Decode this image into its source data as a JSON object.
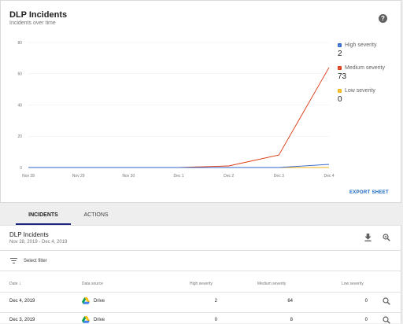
{
  "header": {
    "title": "DLP Incidents",
    "subtitle": "Incidents over time",
    "help_icon": "help-icon"
  },
  "chart_data": {
    "type": "line",
    "x": [
      "Nov 28",
      "Nov 29",
      "Nov 30",
      "Dec 1",
      "Dec 2",
      "Dec 3",
      "Dec 4"
    ],
    "y_ticks": [
      "80",
      "60",
      "40",
      "20",
      "0"
    ],
    "ylim": [
      0,
      80
    ],
    "grid": true,
    "legend_placement": "right",
    "series": [
      {
        "name": "High severity",
        "color": "#3366cc",
        "values": [
          0,
          0,
          0,
          0,
          0,
          0,
          2
        ]
      },
      {
        "name": "Medium severity",
        "color": "#dc3912",
        "values": [
          0,
          0,
          0,
          0,
          1,
          8,
          64
        ]
      },
      {
        "name": "Low severity",
        "color": "#f2b616",
        "values": [
          0,
          0,
          0,
          0,
          0,
          0,
          0
        ]
      }
    ]
  },
  "legend": [
    {
      "name": "High severity",
      "value": "2",
      "color": "#3366cc"
    },
    {
      "name": "Medium severity",
      "value": "73",
      "color": "#dc3912"
    },
    {
      "name": "Low severity",
      "value": "0",
      "color": "#f2b616"
    }
  ],
  "export_label": "EXPORT SHEET",
  "tabs": [
    {
      "label": "INCIDENTS",
      "active": true
    },
    {
      "label": "ACTIONS",
      "active": false
    }
  ],
  "table": {
    "title": "DLP Incidents",
    "date_range": "Nov 28, 2019 - Dec 4, 2019",
    "filter_placeholder": "Select filter",
    "columns": [
      "Date",
      "Data source",
      "High severity",
      "Medium severity",
      "Low severity"
    ],
    "sort_indicator": "↓",
    "rows": [
      {
        "date": "Dec 4, 2019",
        "source": "Drive",
        "high": "2",
        "medium": "64",
        "low": "0"
      },
      {
        "date": "Dec 3, 2019",
        "source": "Drive",
        "high": "0",
        "medium": "8",
        "low": "0"
      }
    ]
  }
}
